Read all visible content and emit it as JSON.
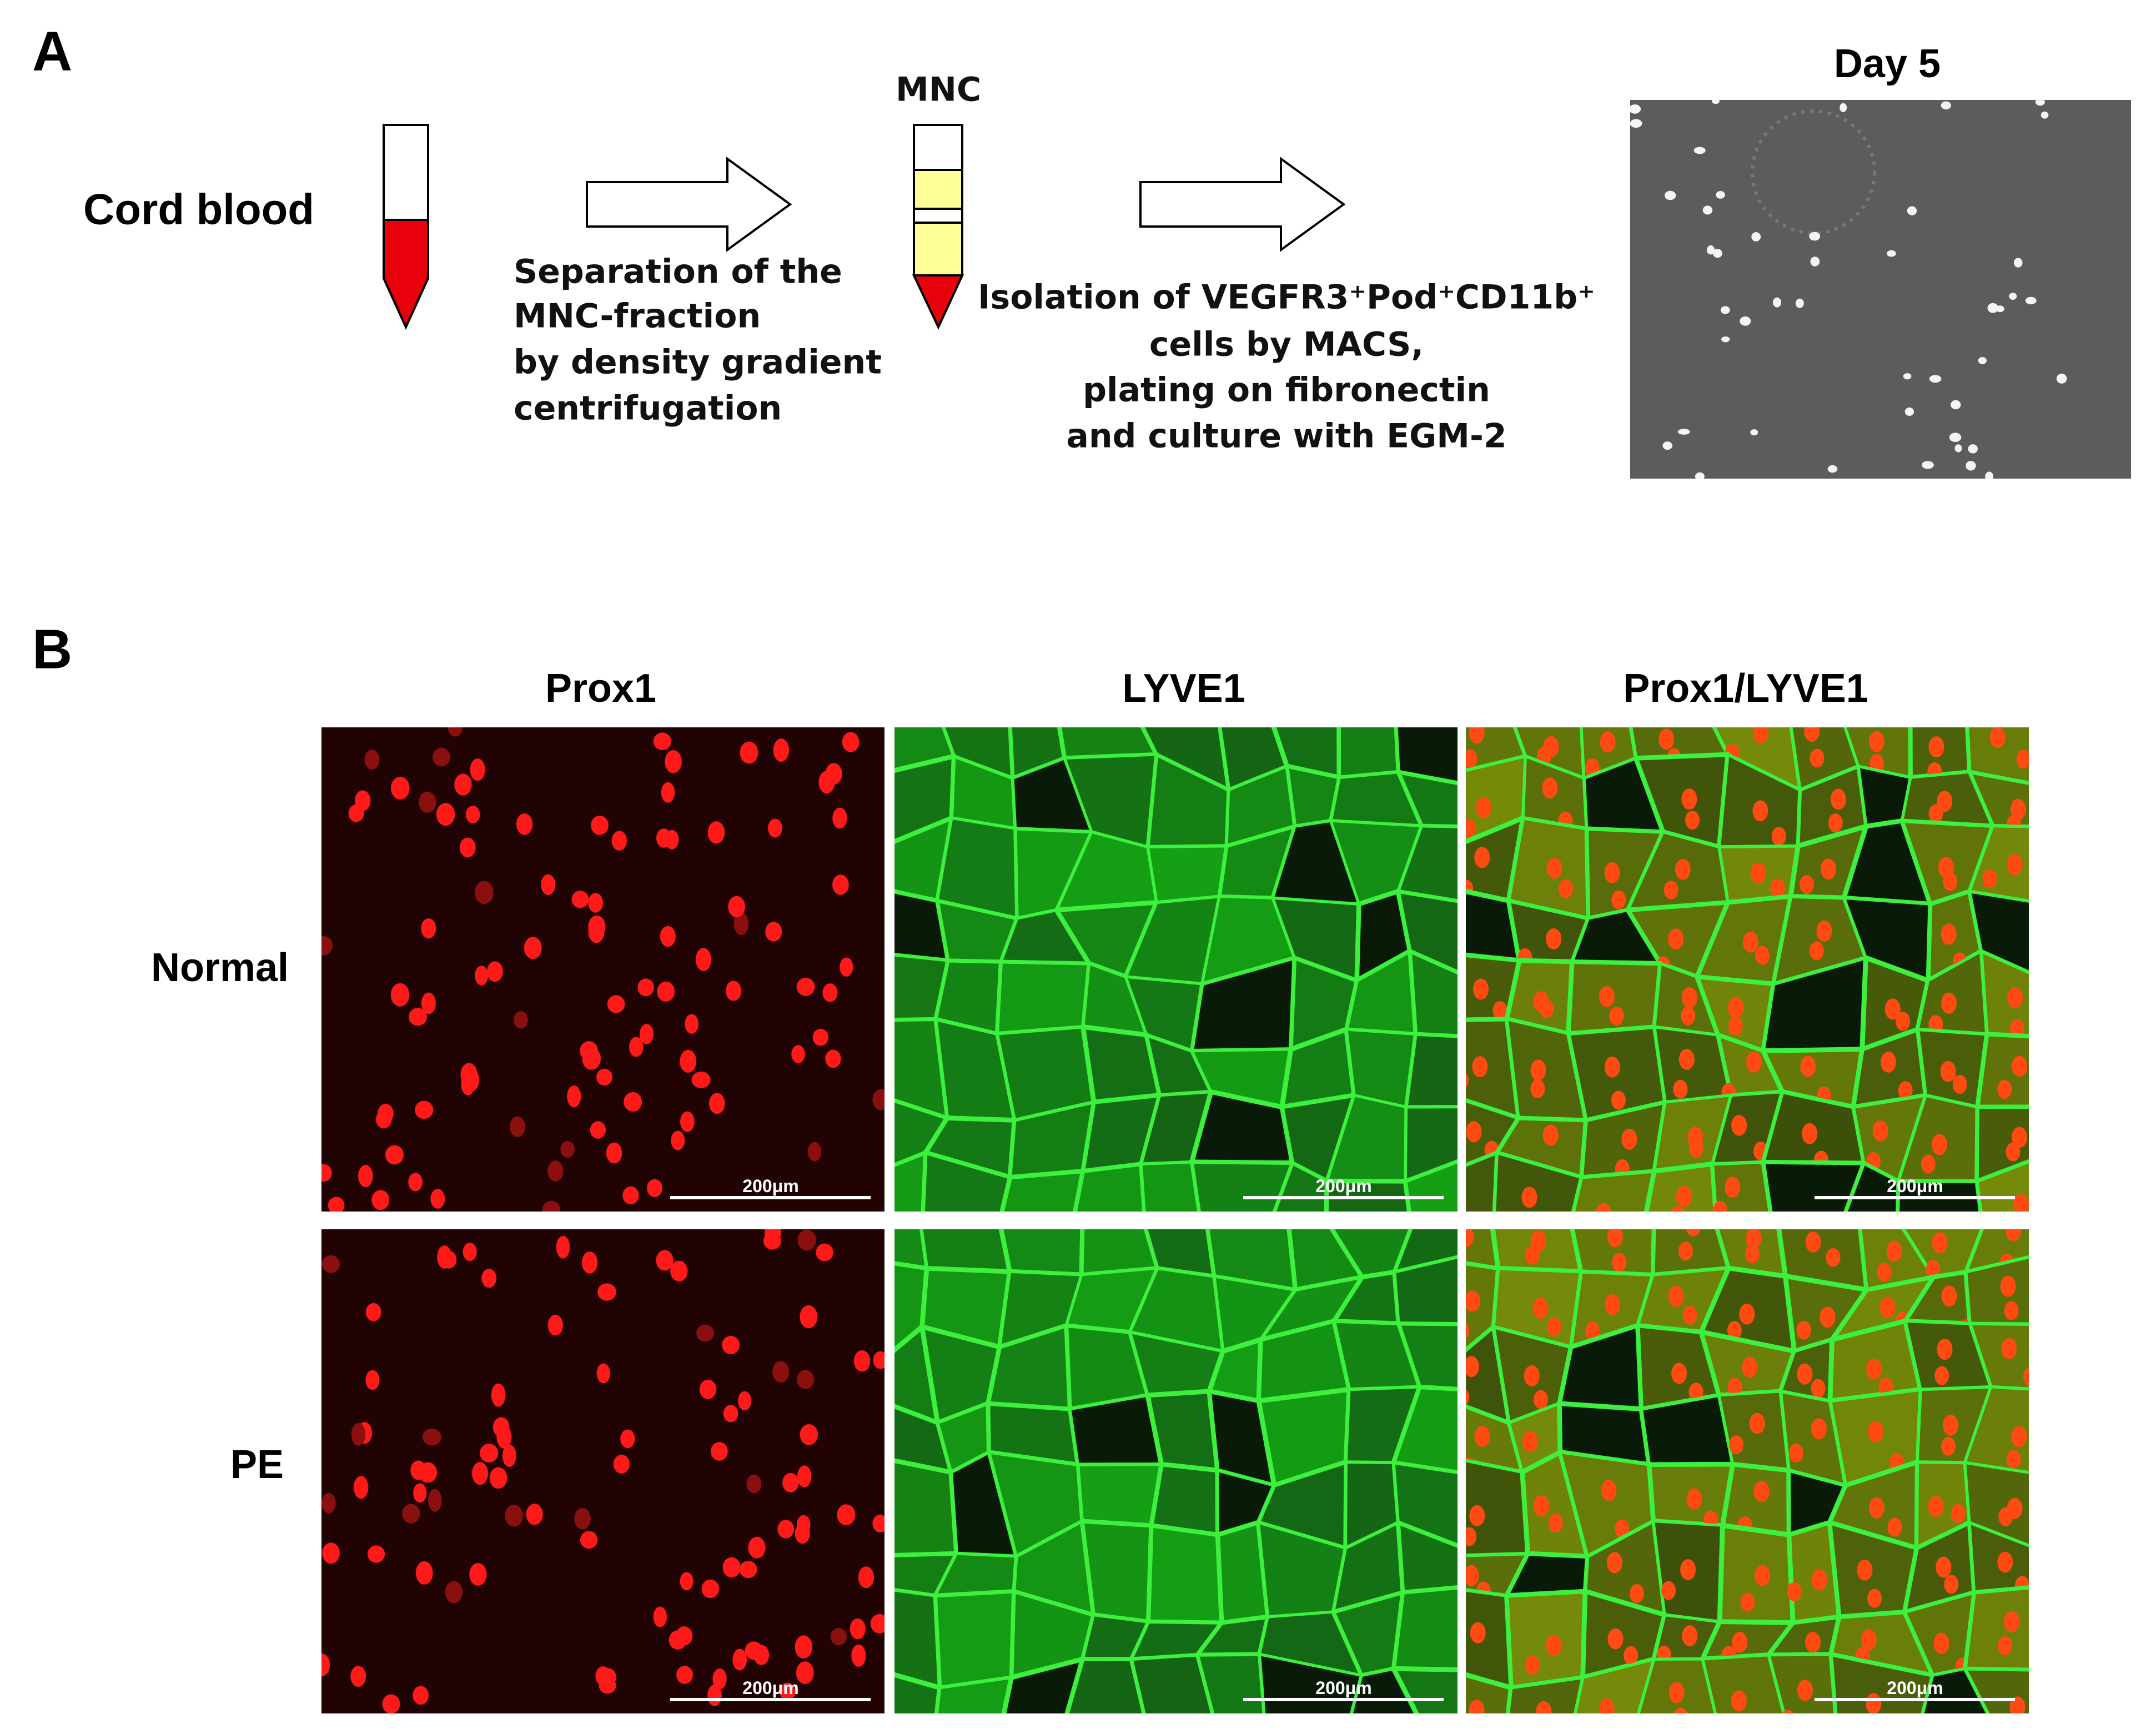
{
  "panel_a": {
    "label": "A",
    "source": "Cord blood",
    "tube_label": "MNC",
    "step1": [
      "Separation of the",
      "MNC-fraction",
      "by density gradient",
      "centrifugation"
    ],
    "step2": [
      "Isolation of VEGFR3⁺Pod⁺CD11b⁺",
      "cells by MACS,",
      "plating on fibronectin",
      "and culture with EGM-2"
    ],
    "result": "Day 5"
  },
  "panel_b": {
    "label": "B",
    "columns": [
      "Prox1",
      "LYVE1",
      "Prox1/LYVE1"
    ],
    "rows": [
      "Normal",
      "PE"
    ],
    "scale_bars": [
      [
        "200μm",
        "200μm",
        "200μm"
      ],
      [
        "200μm",
        "200μm",
        "200μm"
      ]
    ]
  }
}
